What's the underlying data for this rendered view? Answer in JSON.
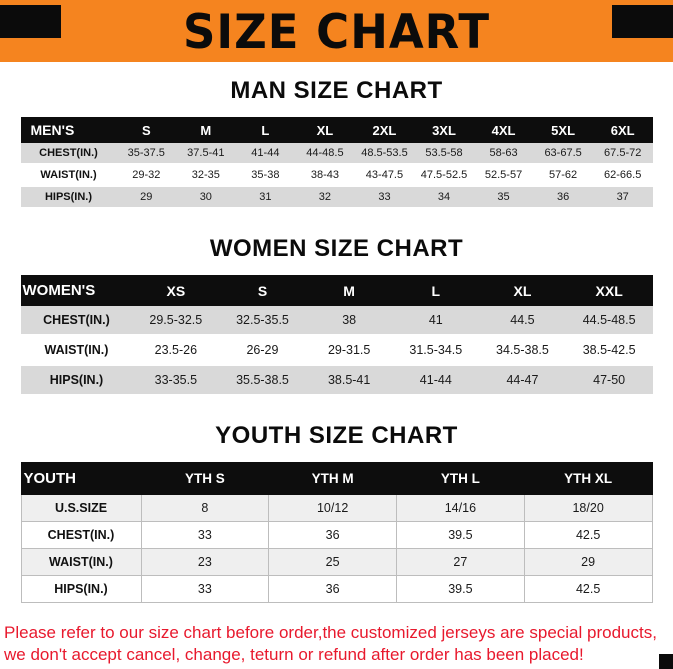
{
  "banner": {
    "title": "SIZE CHART"
  },
  "colors": {
    "banner_bg": "#F5841F",
    "header_bg": "#0d0d0d",
    "row_alt": "#d9d9d9",
    "footer_text": "#e8192d"
  },
  "sections": [
    {
      "id": "men",
      "heading": "MAN SIZE CHART",
      "table": {
        "header": [
          "MEN'S",
          "S",
          "M",
          "L",
          "XL",
          "2XL",
          "3XL",
          "4XL",
          "5XL",
          "6XL"
        ],
        "rows": [
          [
            "CHEST(IN.)",
            "35-37.5",
            "37.5-41",
            "41-44",
            "44-48.5",
            "48.5-53.5",
            "53.5-58",
            "58-63",
            "63-67.5",
            "67.5-72"
          ],
          [
            "WAIST(IN.)",
            "29-32",
            "32-35",
            "35-38",
            "38-43",
            "43-47.5",
            "47.5-52.5",
            "52.5-57",
            "57-62",
            "62-66.5"
          ],
          [
            "HIPS(IN.)",
            "29",
            "30",
            "31",
            "32",
            "33",
            "34",
            "35",
            "36",
            "37"
          ]
        ]
      }
    },
    {
      "id": "women",
      "heading": "WOMEN SIZE CHART",
      "table": {
        "header": [
          "WOMEN'S",
          "XS",
          "S",
          "M",
          "L",
          "XL",
          "XXL"
        ],
        "rows": [
          [
            "CHEST(IN.)",
            "29.5-32.5",
            "32.5-35.5",
            "38",
            "41",
            "44.5",
            "44.5-48.5"
          ],
          [
            "WAIST(IN.)",
            "23.5-26",
            "26-29",
            "29-31.5",
            "31.5-34.5",
            "34.5-38.5",
            "38.5-42.5"
          ],
          [
            "HIPS(IN.)",
            "33-35.5",
            "35.5-38.5",
            "38.5-41",
            "41-44",
            "44-47",
            "47-50"
          ]
        ]
      }
    },
    {
      "id": "youth",
      "heading": "YOUTH SIZE CHART",
      "table": {
        "header": [
          "YOUTH",
          "YTH S",
          "YTH M",
          "YTH L",
          "YTH XL"
        ],
        "rows": [
          [
            "U.S.SIZE",
            "8",
            "10/12",
            "14/16",
            "18/20"
          ],
          [
            "CHEST(IN.)",
            "33",
            "36",
            "39.5",
            "42.5"
          ],
          [
            "WAIST(IN.)",
            "23",
            "25",
            "27",
            "29"
          ],
          [
            "HIPS(IN.)",
            "33",
            "36",
            "39.5",
            "42.5"
          ]
        ]
      }
    }
  ],
  "footer": {
    "lines": [
      "Please refer to our size chart before order,the customized jerseys are special products,",
      "we don't accept cancel, change, teturn or refund after order has been placed!"
    ]
  }
}
